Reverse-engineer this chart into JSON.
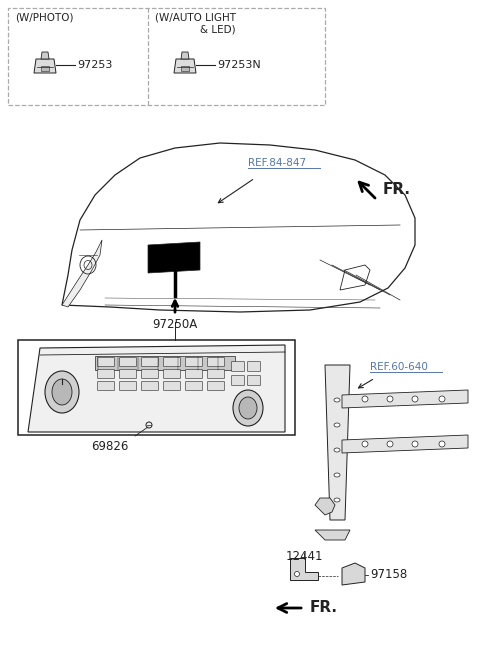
{
  "bg_color": "#ffffff",
  "box1_label": "(W/PHOTO)",
  "box1_part": "97253",
  "box2_label": "(W/AUTO LIGHT\n& LED)",
  "box2_part": "97253N",
  "ref1": "REF.84-847",
  "ref2": "REF.60-640",
  "label_97250A": "97250A",
  "label_69826": "69826",
  "label_12441": "12441",
  "label_97158": "97158",
  "fr_label": "FR.",
  "line_color": "#222222",
  "ref_color": "#5577aa",
  "dashed_color": "#aaaaaa"
}
